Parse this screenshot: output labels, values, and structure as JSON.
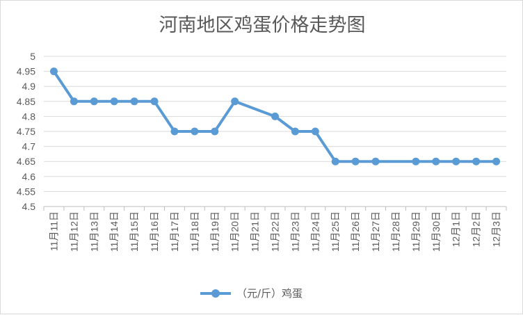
{
  "chart_data": {
    "type": "line",
    "title": "河南地区鸡蛋价格走势图",
    "xlabel": "",
    "ylabel": "",
    "categories": [
      "11月11日",
      "11月12日",
      "11月13日",
      "11月14日",
      "11月15日",
      "11月16日",
      "11月17日",
      "11月18日",
      "11月19日",
      "11月20日",
      "11月21日",
      "11月22日",
      "11月23日",
      "11月24日",
      "11月25日",
      "11月26日",
      "11月27日",
      "11月28日",
      "11月29日",
      "11月30日",
      "12月1日",
      "12月2日",
      "12月3日"
    ],
    "series": [
      {
        "name": "（元/斤）鸡蛋",
        "color": "#5b9bd5",
        "values": [
          4.95,
          4.85,
          4.85,
          4.85,
          4.85,
          4.85,
          4.75,
          4.75,
          4.75,
          4.85,
          null,
          4.8,
          4.75,
          4.75,
          4.65,
          4.65,
          4.65,
          null,
          4.65,
          4.65,
          4.65,
          4.65,
          4.65
        ]
      }
    ],
    "ylim": [
      4.5,
      5
    ],
    "yticks": [
      "4.5",
      "4.55",
      "4.6",
      "4.65",
      "4.7",
      "4.75",
      "4.8",
      "4.85",
      "4.9",
      "4.95",
      "5"
    ],
    "grid": true,
    "legend_position": "bottom"
  }
}
